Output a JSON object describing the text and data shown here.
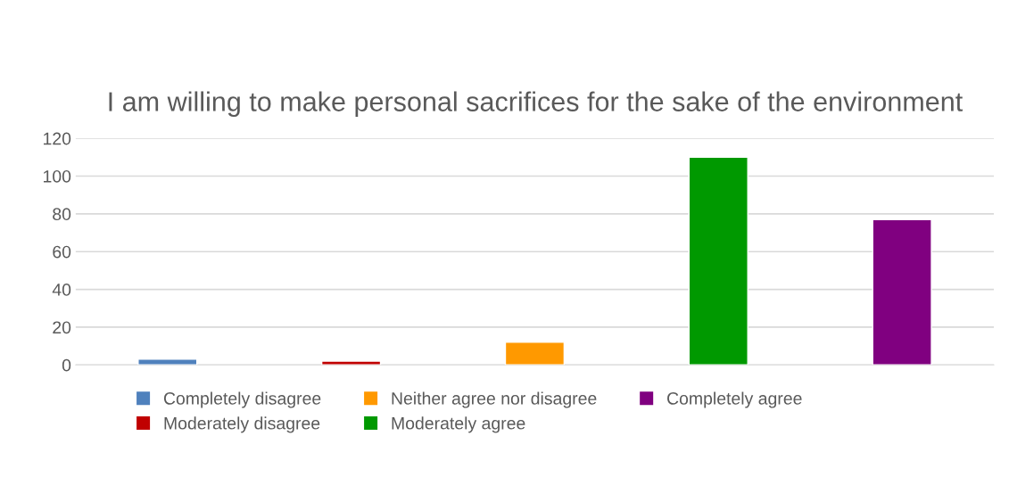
{
  "chart_data": {
    "type": "bar",
    "title": "I am willing to make personal sacrifices for the sake of the environment",
    "categories": [
      null,
      null,
      null,
      null,
      null
    ],
    "series": [
      {
        "name": "Completely disagree",
        "color": "#4f81bd",
        "values": [
          3,
          null,
          null,
          null,
          null
        ]
      },
      {
        "name": "Moderately disagree",
        "color": "#c00000",
        "values": [
          null,
          2,
          null,
          null,
          null
        ]
      },
      {
        "name": "Neither agree nor disagree",
        "color": "#ff9900",
        "values": [
          null,
          null,
          12,
          null,
          null
        ]
      },
      {
        "name": "Moderately agree",
        "color": "#009900",
        "values": [
          null,
          null,
          null,
          110,
          null
        ]
      },
      {
        "name": "Completely agree",
        "color": "#800080",
        "values": [
          null,
          null,
          null,
          null,
          77
        ]
      }
    ],
    "ylim": [
      0,
      120
    ],
    "yticks": [
      0,
      20,
      40,
      60,
      80,
      100,
      120
    ],
    "grid": "y",
    "legend": "bottom"
  }
}
